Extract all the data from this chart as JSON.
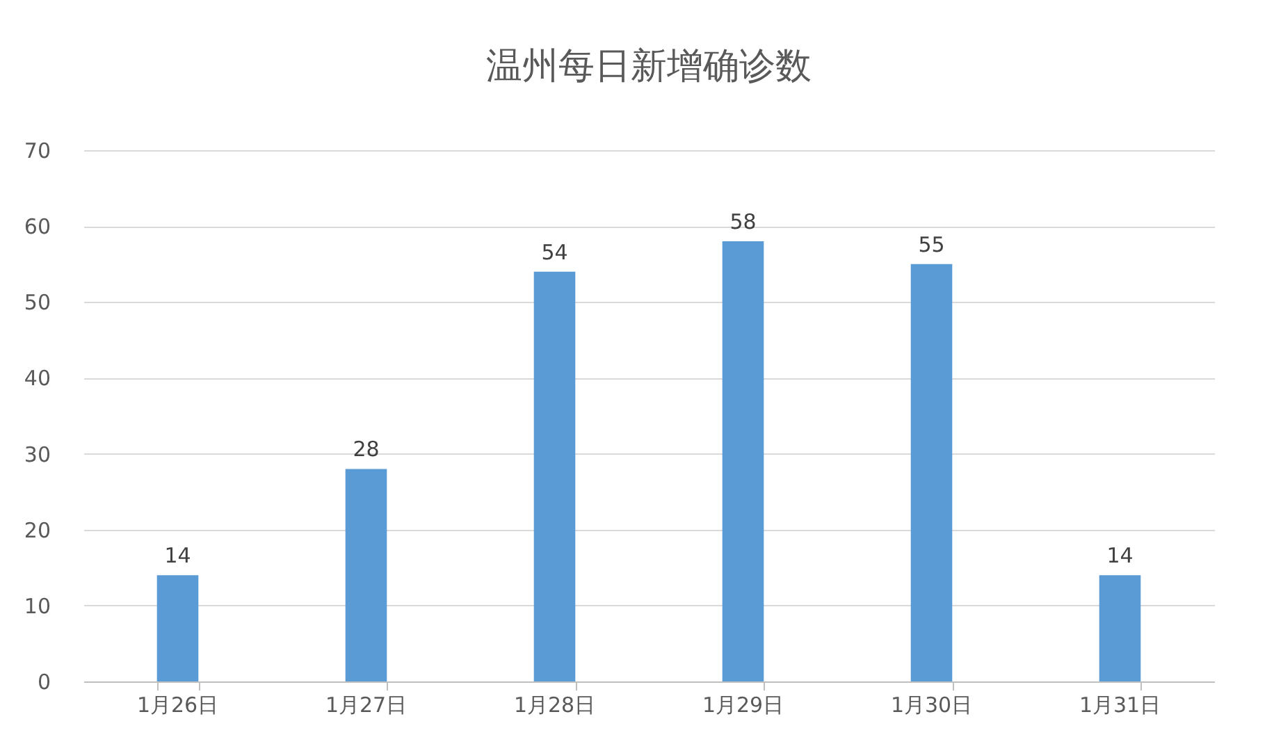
{
  "chart_data": {
    "type": "bar",
    "title": "温州每日新增确诊数",
    "categories": [
      "1月26日",
      "1月27日",
      "1月28日",
      "1月29日",
      "1月30日",
      "1月31日"
    ],
    "values": [
      14,
      28,
      54,
      58,
      55,
      14
    ],
    "color": "#5b9bd5",
    "ylim": [
      0,
      70
    ],
    "yticks": [
      0,
      10,
      20,
      30,
      40,
      50,
      60,
      70
    ],
    "grid": "y",
    "data_labels": true
  }
}
